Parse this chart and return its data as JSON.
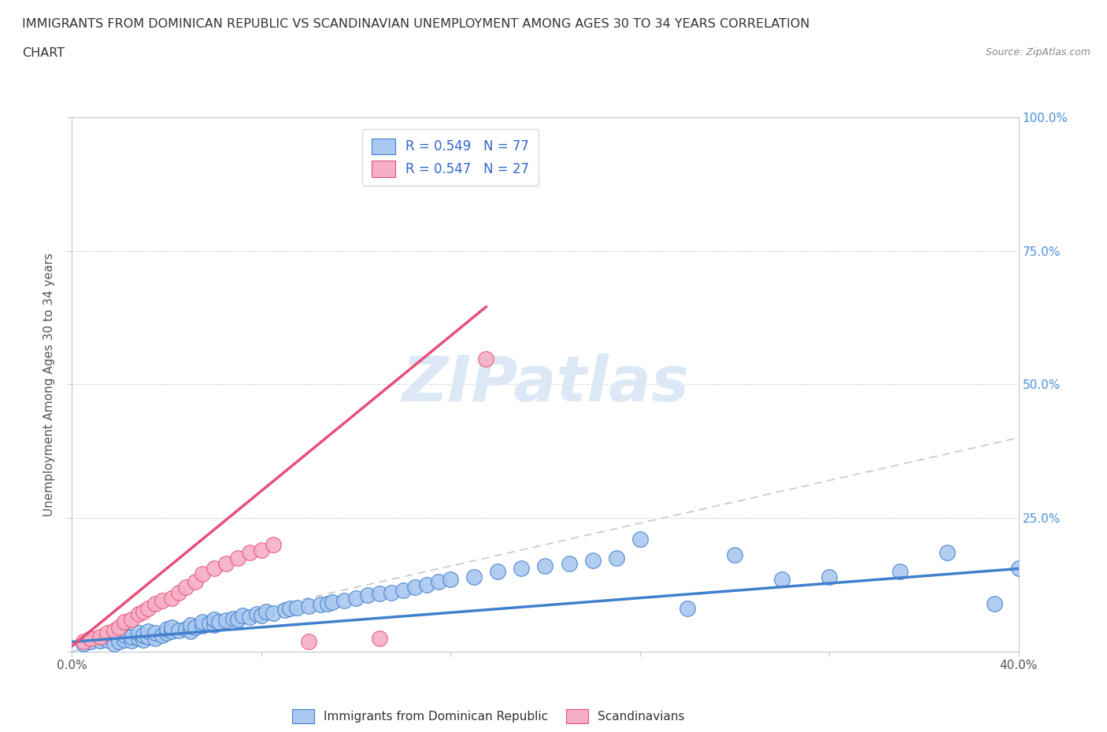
{
  "title_line1": "IMMIGRANTS FROM DOMINICAN REPUBLIC VS SCANDINAVIAN UNEMPLOYMENT AMONG AGES 30 TO 34 YEARS CORRELATION",
  "title_line2": "CHART",
  "source_text": "Source: ZipAtlas.com",
  "ylabel": "Unemployment Among Ages 30 to 34 years",
  "xlim": [
    0.0,
    0.4
  ],
  "ylim": [
    0.0,
    1.0
  ],
  "xticks": [
    0.0,
    0.08,
    0.16,
    0.24,
    0.32,
    0.4
  ],
  "xtick_labels_show": [
    "0.0%",
    "",
    "",
    "",
    "",
    "40.0%"
  ],
  "yticks": [
    0.0,
    0.25,
    0.5,
    0.75,
    1.0
  ],
  "ytick_labels_show": [
    "",
    "25.0%",
    "50.0%",
    "75.0%",
    "100.0%"
  ],
  "blue_color": "#aac8f0",
  "pink_color": "#f5b0c5",
  "blue_line_color": "#4080cc",
  "pink_line_color": "#e8507a",
  "ref_line_color": "#c0c8d8",
  "legend_R1": "R = 0.549",
  "legend_N1": "N = 77",
  "legend_R2": "R = 0.547",
  "legend_N2": "N = 27",
  "blue_scatter_x": [
    0.005,
    0.008,
    0.012,
    0.015,
    0.018,
    0.02,
    0.02,
    0.022,
    0.022,
    0.025,
    0.025,
    0.028,
    0.028,
    0.03,
    0.03,
    0.032,
    0.032,
    0.035,
    0.035,
    0.038,
    0.04,
    0.04,
    0.042,
    0.042,
    0.045,
    0.048,
    0.05,
    0.05,
    0.052,
    0.055,
    0.055,
    0.058,
    0.06,
    0.06,
    0.062,
    0.065,
    0.068,
    0.07,
    0.072,
    0.075,
    0.078,
    0.08,
    0.082,
    0.085,
    0.09,
    0.092,
    0.095,
    0.1,
    0.105,
    0.108,
    0.11,
    0.115,
    0.12,
    0.125,
    0.13,
    0.135,
    0.14,
    0.145,
    0.15,
    0.155,
    0.16,
    0.17,
    0.18,
    0.19,
    0.2,
    0.21,
    0.22,
    0.23,
    0.24,
    0.26,
    0.28,
    0.3,
    0.32,
    0.35,
    0.37,
    0.39,
    0.4
  ],
  "blue_scatter_y": [
    0.015,
    0.018,
    0.02,
    0.022,
    0.015,
    0.025,
    0.018,
    0.022,
    0.03,
    0.02,
    0.028,
    0.025,
    0.035,
    0.022,
    0.03,
    0.028,
    0.038,
    0.025,
    0.035,
    0.03,
    0.035,
    0.042,
    0.038,
    0.045,
    0.04,
    0.042,
    0.038,
    0.05,
    0.045,
    0.048,
    0.055,
    0.052,
    0.05,
    0.06,
    0.055,
    0.058,
    0.062,
    0.06,
    0.068,
    0.065,
    0.07,
    0.068,
    0.075,
    0.072,
    0.078,
    0.08,
    0.082,
    0.085,
    0.088,
    0.09,
    0.092,
    0.095,
    0.1,
    0.105,
    0.108,
    0.11,
    0.115,
    0.12,
    0.125,
    0.13,
    0.135,
    0.14,
    0.15,
    0.155,
    0.16,
    0.165,
    0.17,
    0.175,
    0.21,
    0.08,
    0.18,
    0.135,
    0.14,
    0.15,
    0.185,
    0.09,
    0.155
  ],
  "pink_scatter_x": [
    0.005,
    0.008,
    0.012,
    0.015,
    0.018,
    0.02,
    0.022,
    0.025,
    0.028,
    0.03,
    0.032,
    0.035,
    0.038,
    0.042,
    0.045,
    0.048,
    0.052,
    0.055,
    0.06,
    0.065,
    0.07,
    0.075,
    0.08,
    0.085,
    0.1,
    0.13,
    0.175
  ],
  "pink_scatter_y": [
    0.018,
    0.025,
    0.028,
    0.035,
    0.04,
    0.045,
    0.055,
    0.06,
    0.07,
    0.075,
    0.08,
    0.09,
    0.095,
    0.1,
    0.11,
    0.12,
    0.13,
    0.145,
    0.155,
    0.165,
    0.175,
    0.185,
    0.19,
    0.2,
    0.018,
    0.025,
    0.548
  ],
  "blue_trend_x": [
    0.0,
    0.4
  ],
  "blue_trend_y": [
    0.018,
    0.155
  ],
  "pink_trend_x": [
    0.0,
    0.175
  ],
  "pink_trend_y": [
    0.01,
    0.645
  ],
  "ref_line_x": [
    0.0,
    1.0
  ],
  "ref_line_y": [
    0.0,
    1.0
  ],
  "grid_color": "#d8dce8",
  "background_color": "#ffffff",
  "title_color": "#333333",
  "ylabel_color": "#555555",
  "ytick_color": "#4a90d9",
  "xtick_color": "#555555",
  "source_color": "#888888",
  "watermark_color": "#dce8f5",
  "legend_color": "#333333",
  "legend_rn_color": "#3366cc"
}
